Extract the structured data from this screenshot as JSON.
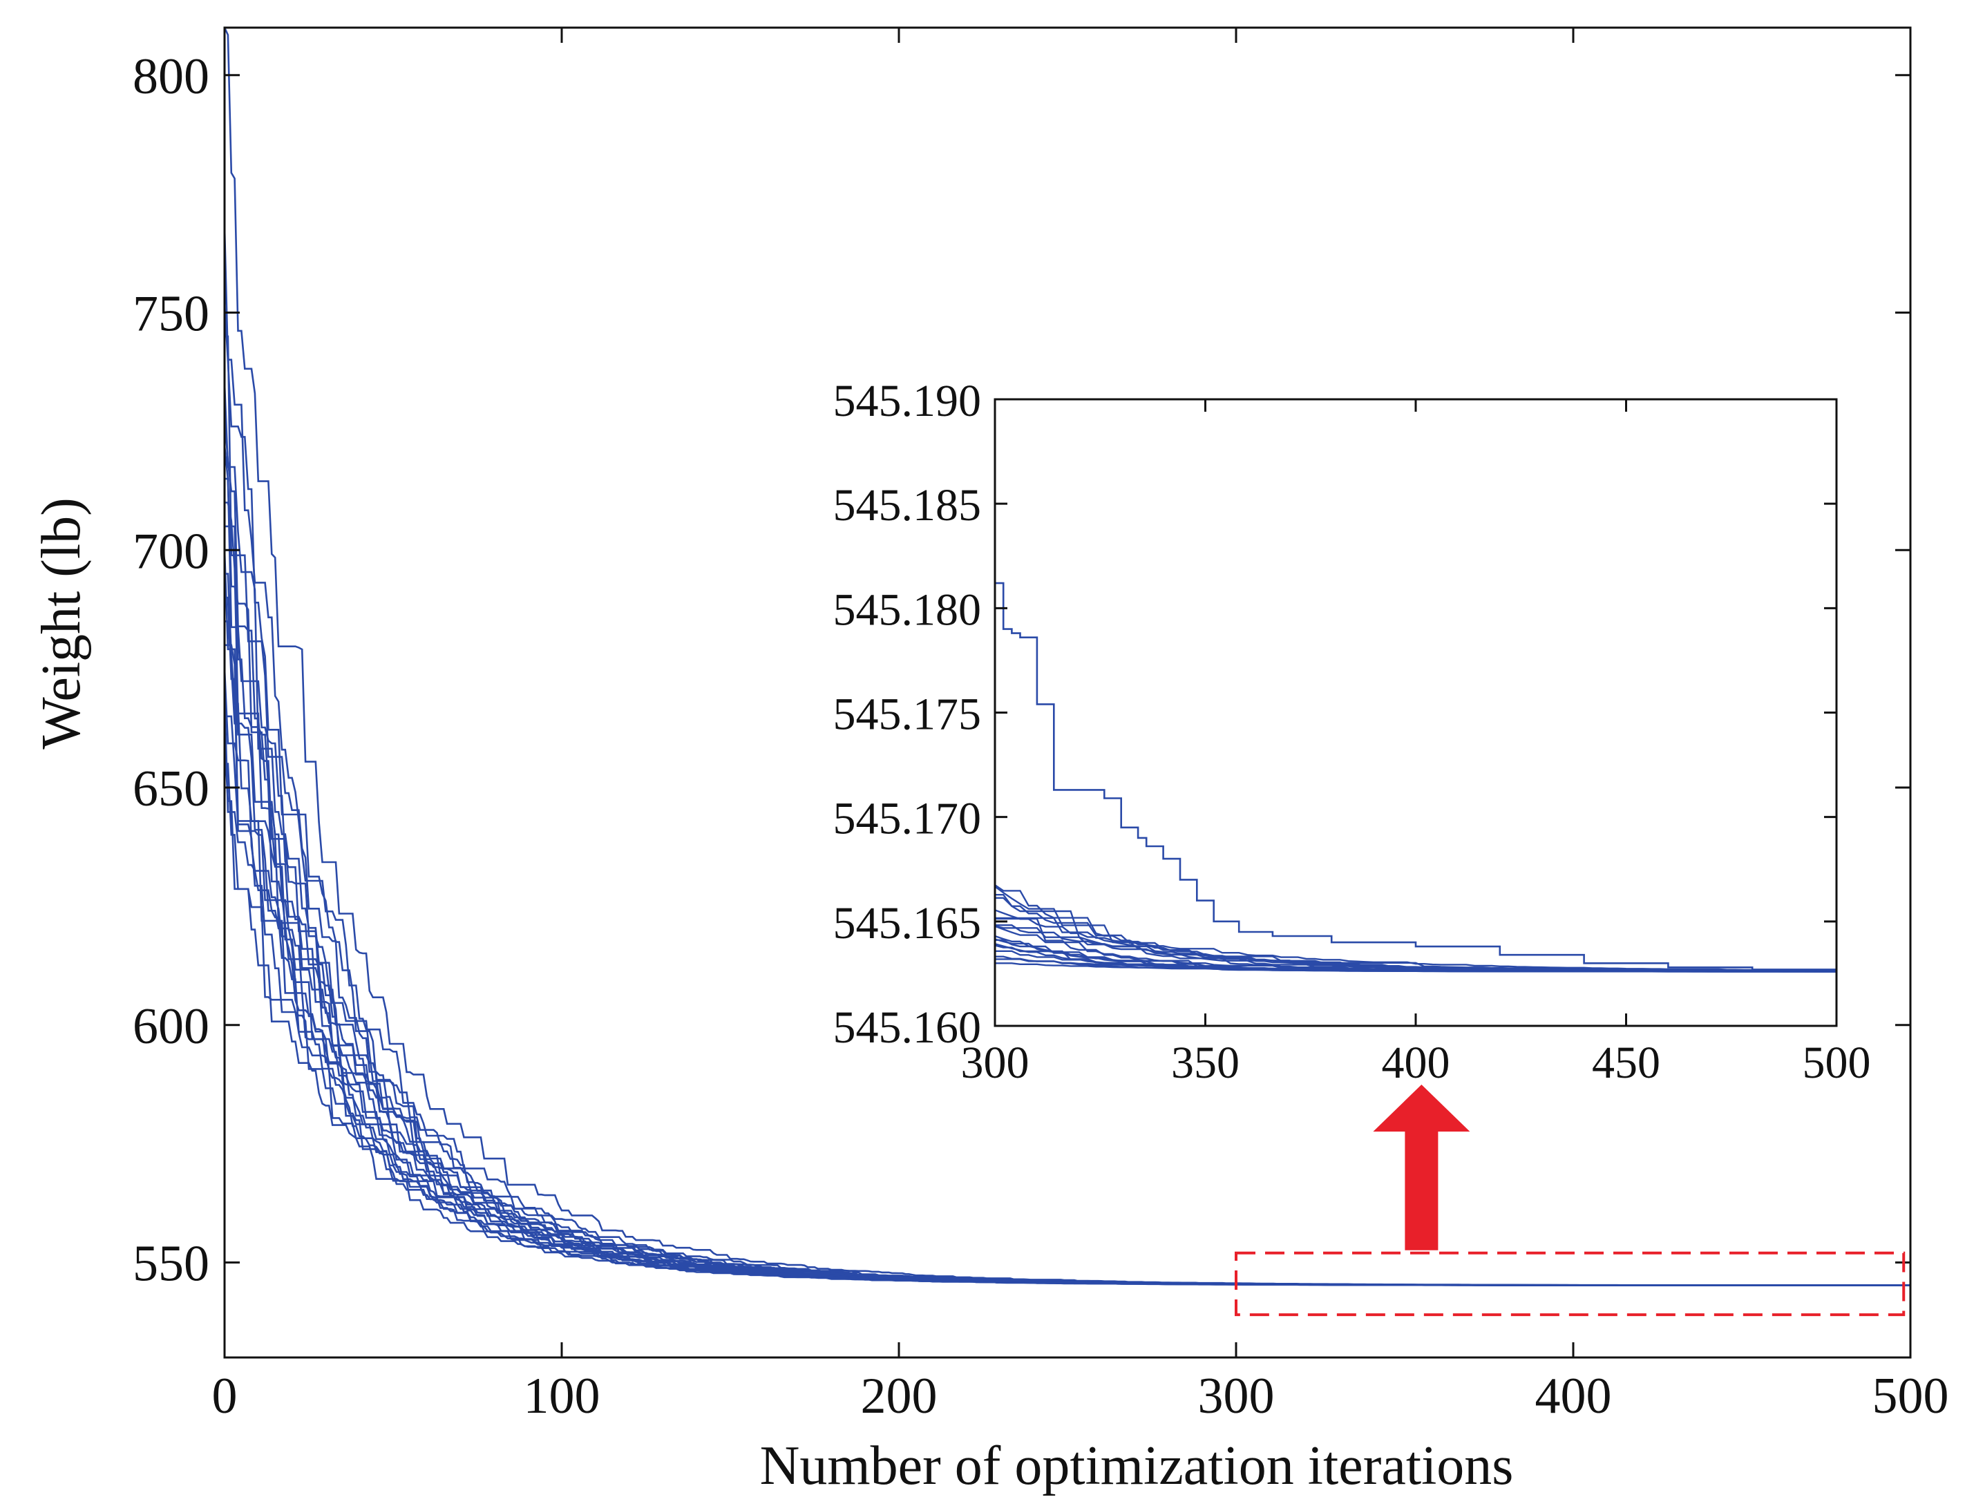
{
  "chart_data": [
    {
      "id": "main",
      "type": "line",
      "title": "",
      "xlabel": "Number of optimization iterations",
      "ylabel": "Weight (lb)",
      "xlim": [
        0,
        500
      ],
      "ylim": [
        530,
        810
      ],
      "xticks": [
        0,
        100,
        200,
        300,
        400,
        500
      ],
      "xtick_labels": [
        "0",
        "100",
        "200",
        "300",
        "400",
        "500"
      ],
      "yticks": [
        550,
        600,
        650,
        700,
        750,
        800
      ],
      "ytick_labels": [
        "550",
        "600",
        "650",
        "700",
        "750",
        "800"
      ],
      "grid": false,
      "legend": "none",
      "line_color": "#2a4aa8",
      "run_count": 20,
      "convergence_value": 545.1626,
      "series_generator": {
        "start_values": [
          810,
          768,
          752,
          745,
          735,
          728,
          722,
          715,
          710,
          705,
          700,
          695,
          690,
          685,
          680,
          675,
          670,
          665,
          660,
          655
        ],
        "initial_noise": 40,
        "fast_decay_iters": 25,
        "slow_decay_iters": 60
      }
    },
    {
      "id": "inset",
      "type": "line",
      "title": "",
      "xlabel": "",
      "ylabel": "",
      "xlim": [
        300,
        500
      ],
      "ylim": [
        545.16,
        545.19
      ],
      "xticks": [
        300,
        350,
        400,
        450,
        500
      ],
      "xtick_labels": [
        "300",
        "350",
        "400",
        "450",
        "500"
      ],
      "yticks": [
        545.16,
        545.165,
        545.17,
        545.175,
        545.18,
        545.185,
        545.19
      ],
      "ytick_labels": [
        "545.160",
        "545.165",
        "545.170",
        "545.175",
        "545.180",
        "545.185",
        "545.190"
      ],
      "grid": false,
      "legend": "none",
      "line_color": "#2a4aa8",
      "outlier_run": {
        "x": [
          300,
          302,
          304,
          306,
          310,
          314,
          316,
          320,
          326,
          330,
          334,
          336,
          340,
          344,
          348,
          352,
          358,
          366,
          380,
          400,
          420,
          440,
          460,
          480,
          500
        ],
        "y": [
          545.1812,
          545.179,
          545.1788,
          545.1786,
          545.1754,
          545.1713,
          545.1713,
          545.1713,
          545.1709,
          545.1695,
          545.169,
          545.1686,
          545.168,
          545.167,
          545.166,
          545.165,
          545.1645,
          545.1643,
          545.164,
          545.1638,
          545.1634,
          545.163,
          545.1628,
          545.1627,
          545.1626
        ]
      },
      "cluster_start_range": [
        545.163,
        545.1672
      ],
      "convergence_value": 545.1626,
      "cluster_run_count": 19
    }
  ],
  "annotations": {
    "zoom_box": {
      "x_range": [
        300,
        498
      ],
      "y_range": [
        539,
        552
      ],
      "color": "#e8202a",
      "style": "dashed"
    },
    "arrow": {
      "x_center": 355,
      "color": "#e8202a",
      "direction": "up"
    }
  }
}
